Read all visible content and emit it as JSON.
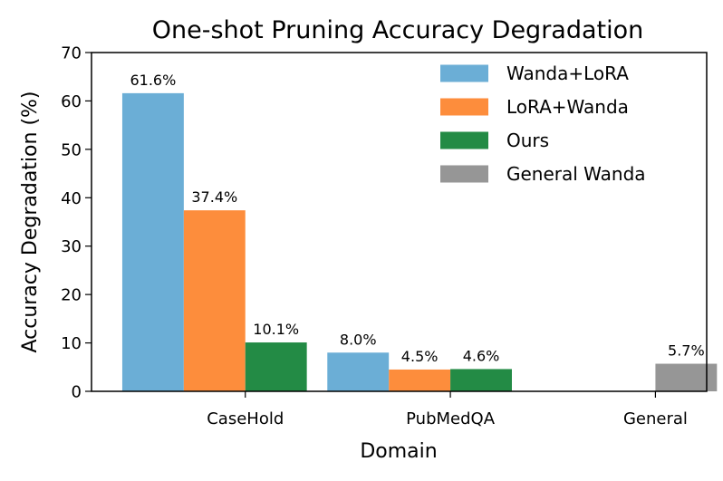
{
  "chart_data": {
    "type": "bar",
    "title": "One-shot Pruning Accuracy Degradation",
    "xlabel": "Domain",
    "ylabel": "Accuracy Degradation (%)",
    "ylim": [
      0,
      70
    ],
    "yticks": [
      0,
      10,
      20,
      30,
      40,
      50,
      60,
      70
    ],
    "grid": false,
    "legend_position": "top-right",
    "categories": [
      "CaseHold",
      "PubMedQA",
      "General"
    ],
    "series": [
      {
        "name": "Wanda+LoRA",
        "color": "#6baed6",
        "values": [
          61.6,
          8.0,
          null
        ],
        "labels": [
          "61.6%",
          "8.0%",
          null
        ]
      },
      {
        "name": "LoRA+Wanda",
        "color": "#fd8d3c",
        "values": [
          37.4,
          4.5,
          null
        ],
        "labels": [
          "37.4%",
          "4.5%",
          null
        ]
      },
      {
        "name": "Ours",
        "color": "#238b45",
        "values": [
          10.1,
          4.6,
          null
        ],
        "labels": [
          "10.1%",
          "4.6%",
          null
        ]
      },
      {
        "name": "General Wanda",
        "color": "#969696",
        "values": [
          null,
          null,
          5.7
        ],
        "labels": [
          null,
          null,
          "5.7%"
        ]
      }
    ]
  }
}
